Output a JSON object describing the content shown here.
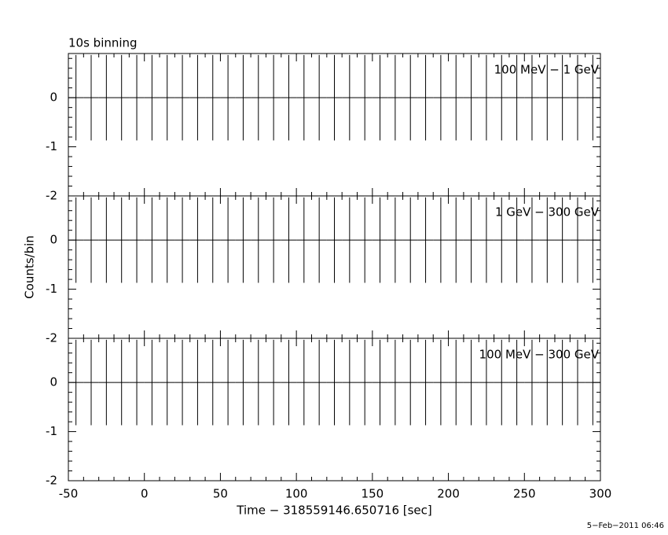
{
  "chart_data": [
    {
      "type": "errorbar",
      "title": "10s binning",
      "label": "100 MeV − 1 GeV",
      "x": [
        -45,
        -35,
        -25,
        -15,
        -5,
        5,
        15,
        25,
        35,
        45,
        55,
        65,
        75,
        85,
        95,
        105,
        115,
        125,
        135,
        145,
        155,
        165,
        175,
        185,
        195,
        205,
        215,
        225,
        235,
        245,
        255,
        265,
        275,
        285,
        295
      ],
      "values": [
        0,
        0,
        0,
        0,
        0,
        0,
        0,
        0,
        0,
        0,
        0,
        0,
        0,
        0,
        0,
        0,
        0,
        0,
        0,
        0,
        0,
        0,
        0,
        0,
        0,
        0,
        0,
        0,
        0,
        0,
        0,
        0,
        0,
        0,
        0
      ],
      "errors": [
        0.87,
        0.87,
        0.87,
        0.87,
        0.87,
        0.87,
        0.87,
        0.87,
        0.87,
        0.87,
        0.87,
        0.87,
        0.87,
        0.87,
        0.87,
        0.87,
        0.87,
        0.87,
        0.87,
        0.87,
        0.87,
        0.87,
        0.87,
        0.87,
        0.87,
        0.87,
        0.87,
        0.87,
        0.87,
        0.87,
        0.87,
        0.87,
        0.87,
        0.87,
        0.87
      ],
      "xlim": [
        -50,
        300
      ],
      "ylim": [
        -2,
        0.9
      ],
      "yticks": [
        -2,
        -1,
        0
      ],
      "color": "#000000"
    },
    {
      "type": "errorbar",
      "label": "1 GeV − 300 GeV",
      "ylabel": "Counts/bin",
      "x": [
        -45,
        -35,
        -25,
        -15,
        -5,
        5,
        15,
        25,
        35,
        45,
        55,
        65,
        75,
        85,
        95,
        105,
        115,
        125,
        135,
        145,
        155,
        165,
        175,
        185,
        195,
        205,
        215,
        225,
        235,
        245,
        255,
        265,
        275,
        285,
        295
      ],
      "values": [
        0,
        0,
        0,
        0,
        0,
        0,
        0,
        0,
        0,
        0,
        0,
        0,
        0,
        0,
        0,
        0,
        0,
        0,
        0,
        0,
        0,
        0,
        0,
        0,
        0,
        0,
        0,
        0,
        0,
        0,
        0,
        0,
        0,
        0,
        0
      ],
      "errors": [
        0.87,
        0.87,
        0.87,
        0.87,
        0.87,
        0.87,
        0.87,
        0.87,
        0.87,
        0.87,
        0.87,
        0.87,
        0.87,
        0.87,
        0.87,
        0.87,
        0.87,
        0.87,
        0.87,
        0.87,
        0.87,
        0.87,
        0.87,
        0.87,
        0.87,
        0.87,
        0.87,
        0.87,
        0.87,
        0.87,
        0.87,
        0.87,
        0.87,
        0.87,
        0.87
      ],
      "xlim": [
        -50,
        300
      ],
      "ylim": [
        -2,
        0.9
      ],
      "yticks": [
        -2,
        -1,
        0
      ],
      "color": "#000000"
    },
    {
      "type": "errorbar",
      "label": "100 MeV − 300 GeV",
      "xlabel": "Time − 318559146.650716 [sec]",
      "x": [
        -45,
        -35,
        -25,
        -15,
        -5,
        5,
        15,
        25,
        35,
        45,
        55,
        65,
        75,
        85,
        95,
        105,
        115,
        125,
        135,
        145,
        155,
        165,
        175,
        185,
        195,
        205,
        215,
        225,
        235,
        245,
        255,
        265,
        275,
        285,
        295
      ],
      "values": [
        0,
        0,
        0,
        0,
        0,
        0,
        0,
        0,
        0,
        0,
        0,
        0,
        0,
        0,
        0,
        0,
        0,
        0,
        0,
        0,
        0,
        0,
        0,
        0,
        0,
        0,
        0,
        0,
        0,
        0,
        0,
        0,
        0,
        0,
        0
      ],
      "errors": [
        0.87,
        0.87,
        0.87,
        0.87,
        0.87,
        0.87,
        0.87,
        0.87,
        0.87,
        0.87,
        0.87,
        0.87,
        0.87,
        0.87,
        0.87,
        0.87,
        0.87,
        0.87,
        0.87,
        0.87,
        0.87,
        0.87,
        0.87,
        0.87,
        0.87,
        0.87,
        0.87,
        0.87,
        0.87,
        0.87,
        0.87,
        0.87,
        0.87,
        0.87,
        0.87
      ],
      "xlim": [
        -50,
        300
      ],
      "ylim": [
        -2,
        0.9
      ],
      "yticks": [
        -2,
        -1,
        0
      ],
      "xticks": [
        -50,
        0,
        50,
        100,
        150,
        200,
        250,
        300
      ],
      "color": "#000000"
    }
  ],
  "footer": "5−Feb−2011 06:46"
}
